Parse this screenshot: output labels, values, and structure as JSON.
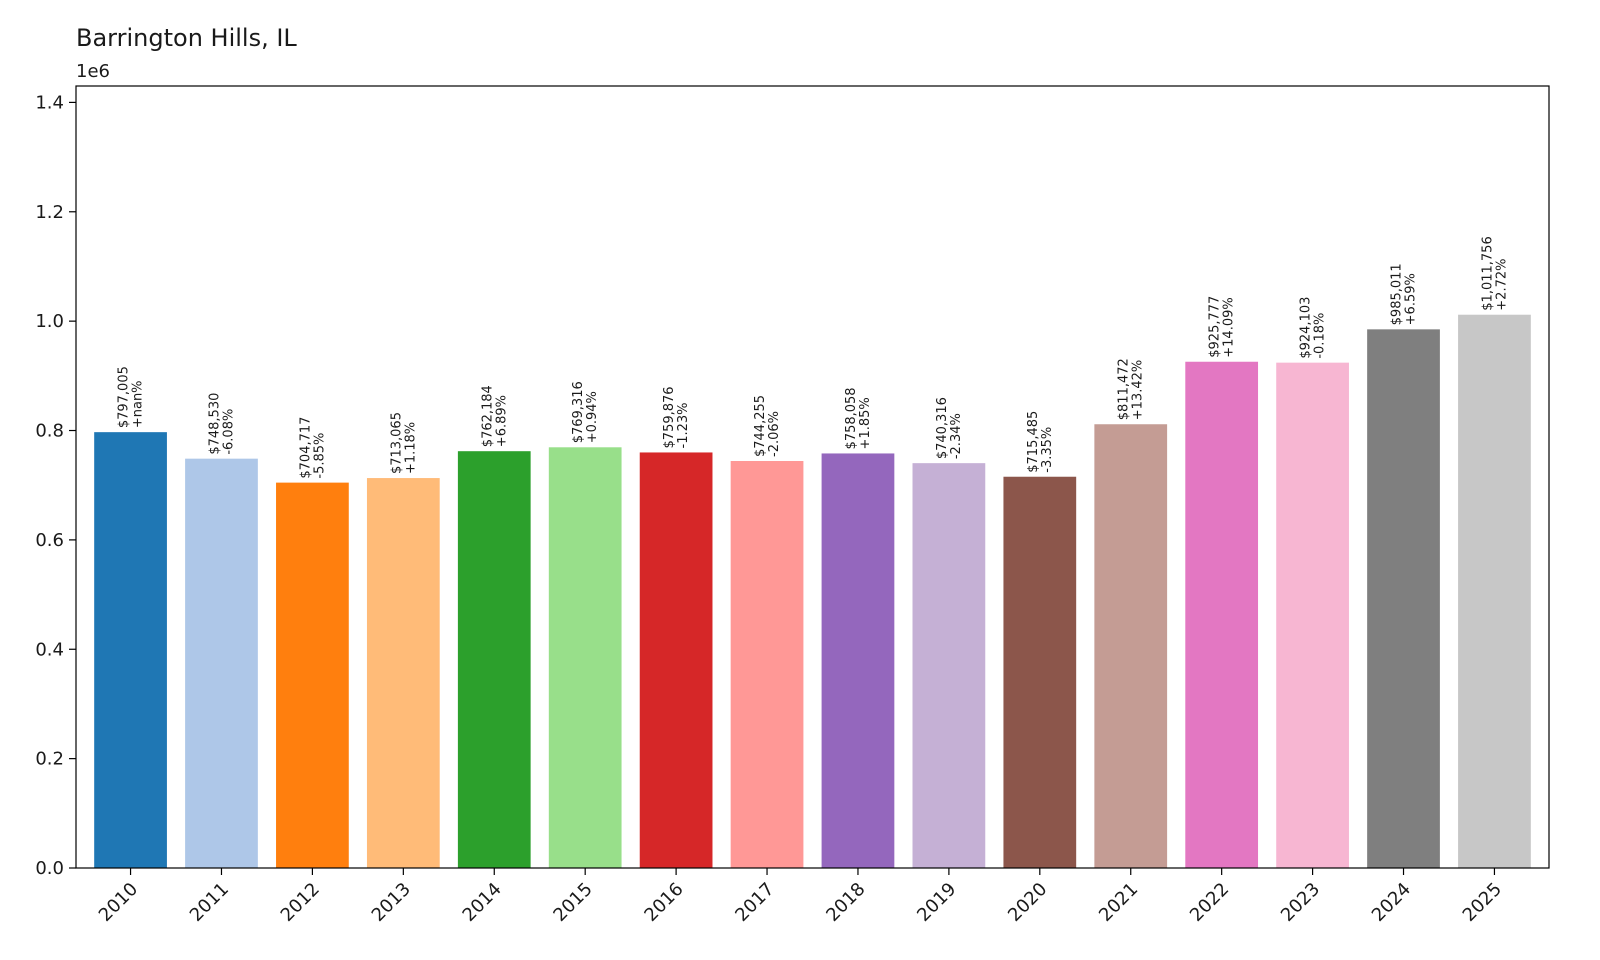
{
  "chart_data": {
    "type": "bar",
    "title": "Barrington Hills, IL",
    "xlabel": "",
    "ylabel": "",
    "y_offset_label": "1e6",
    "ylim": [
      0,
      1.43
    ],
    "yticks": [
      0.0,
      0.2,
      0.4,
      0.6,
      0.8,
      1.0,
      1.2,
      1.4
    ],
    "ytick_labels": [
      "0.0",
      "0.2",
      "0.4",
      "0.6",
      "0.8",
      "1.0",
      "1.2",
      "1.4"
    ],
    "grid": false,
    "categories": [
      "2010",
      "2011",
      "2012",
      "2013",
      "2014",
      "2015",
      "2016",
      "2017",
      "2018",
      "2019",
      "2020",
      "2021",
      "2022",
      "2023",
      "2024",
      "2025"
    ],
    "values": [
      0.797005,
      0.74853,
      0.704717,
      0.713065,
      0.762184,
      0.769316,
      0.759876,
      0.744255,
      0.758058,
      0.740316,
      0.715485,
      0.811472,
      0.925777,
      0.924103,
      0.985011,
      1.011756
    ],
    "price_labels": [
      "$797,005",
      "$748,530",
      "$704,717",
      "$713,065",
      "$762,184",
      "$769,316",
      "$759,876",
      "$744,255",
      "$758,058",
      "$740,316",
      "$715,485",
      "$811,472",
      "$925,777",
      "$924,103",
      "$985,011",
      "$1,011,756"
    ],
    "change_labels": [
      "+nan%",
      "-6.08%",
      "-5.85%",
      "+1.18%",
      "+6.89%",
      "+0.94%",
      "-1.23%",
      "-2.06%",
      "+1.85%",
      "-2.34%",
      "-3.35%",
      "+13.42%",
      "+14.09%",
      "-0.18%",
      "+6.59%",
      "+2.72%"
    ],
    "colors": [
      "#1f77b4",
      "#aec7e8",
      "#ff7f0e",
      "#ffbb78",
      "#2ca02c",
      "#98df8a",
      "#d62728",
      "#ff9896",
      "#9467bd",
      "#c5b0d5",
      "#8c564b",
      "#c49c94",
      "#e377c2",
      "#f7b6d2",
      "#7f7f7f",
      "#c7c7c7"
    ]
  }
}
